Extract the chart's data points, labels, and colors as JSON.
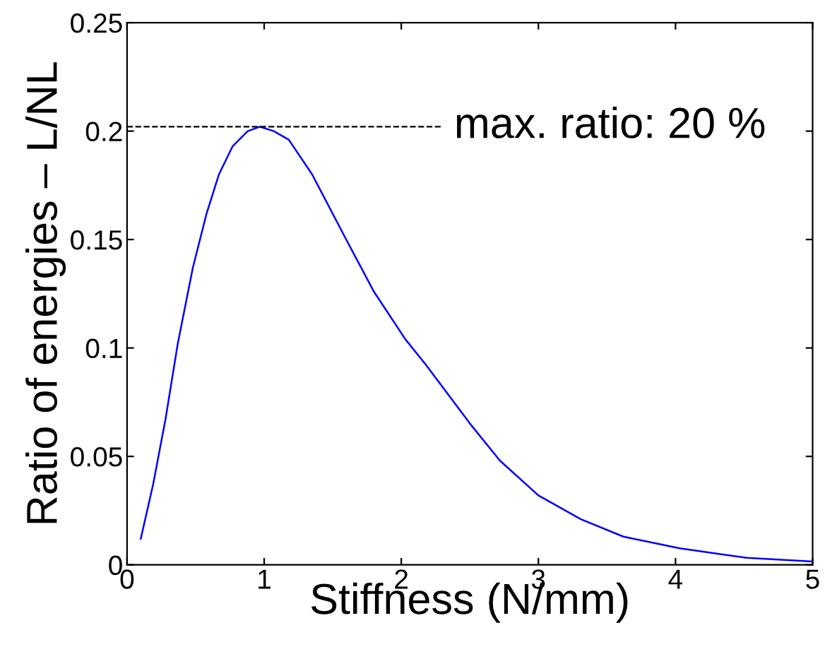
{
  "chart_data": {
    "type": "line",
    "xlabel": "Stiffness (N/mm)",
    "ylabel": "Ratio of energies – L/NL",
    "x": [
      0.1,
      0.19,
      0.28,
      0.37,
      0.48,
      0.58,
      0.67,
      0.77,
      0.88,
      0.97,
      1.07,
      1.18,
      1.35,
      1.59,
      1.8,
      2.03,
      2.17,
      2.515,
      2.72,
      3.0,
      3.31,
      3.62,
      4.03,
      4.52,
      5.0
    ],
    "series": [
      {
        "color": "#0000ff",
        "values": [
          0.012,
          0.037,
          0.067,
          0.102,
          0.137,
          0.162,
          0.18,
          0.193,
          0.2,
          0.202,
          0.2,
          0.196,
          0.18,
          0.151,
          0.126,
          0.104,
          0.093,
          0.064,
          0.048,
          0.032,
          0.021,
          0.013,
          0.0076,
          0.0032,
          0.0015
        ]
      }
    ],
    "xlim": [
      0,
      5
    ],
    "ylim": [
      0,
      0.25
    ],
    "xticks": [
      0,
      1,
      2,
      3,
      4,
      5
    ],
    "yticks": [
      0,
      0.05,
      0.1,
      0.15,
      0.2,
      0.25
    ],
    "ref_lines": [
      {
        "axis": "y",
        "value": 0.202,
        "label": "max. ratio: 20 %",
        "color": "#000000",
        "line_style": "dashed"
      }
    ],
    "grid": false,
    "line_style": "solid",
    "marker": "none"
  }
}
